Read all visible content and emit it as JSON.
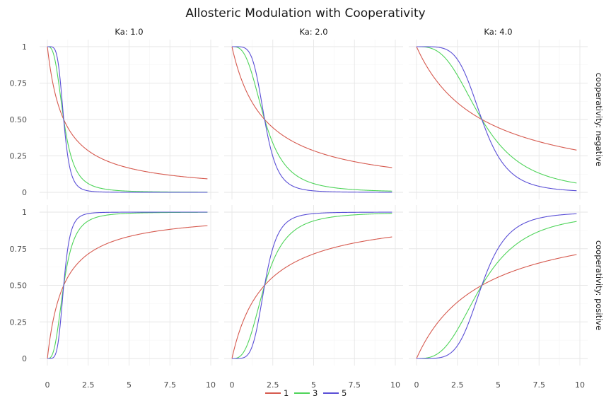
{
  "chart_data": {
    "type": "line",
    "title": "Allosteric Modulation with Cooperativity",
    "xlabel": "",
    "ylabel": "",
    "xlim": [
      0,
      10
    ],
    "ylim": [
      0,
      1
    ],
    "x_ticks": [
      0,
      2.5,
      5,
      7.5,
      10
    ],
    "x_tick_labels": [
      "0",
      "2.5",
      "5",
      "7.5",
      "10"
    ],
    "y_ticks": [
      0,
      0.25,
      0.5,
      0.75,
      1
    ],
    "y_tick_labels": [
      "0",
      "0.25",
      "0.50",
      "0.75",
      "1"
    ],
    "grid": true,
    "legend_position": "bottom",
    "facet_columns": [
      {
        "label": "Ka: 1.0",
        "ka": 1.0
      },
      {
        "label": "Ka: 2.0",
        "ka": 2.0
      },
      {
        "label": "Ka: 4.0",
        "ka": 4.0
      }
    ],
    "facet_rows": [
      {
        "label": "cooperativity: negative",
        "key": "negative"
      },
      {
        "label": "cooperativity: positive",
        "key": "positive"
      }
    ],
    "series": [
      {
        "name": "1",
        "hill": 1,
        "color": "#d65a4f"
      },
      {
        "name": "3",
        "hill": 3,
        "color": "#4fd45a"
      },
      {
        "name": "5",
        "hill": 5,
        "color": "#5a4fd6"
      }
    ],
    "x_range_data": [
      0,
      9.8
    ],
    "curve": "positive: x^n/(Ka^n + x^n); negative: Ka^n/(Ka^n + x^n)"
  }
}
